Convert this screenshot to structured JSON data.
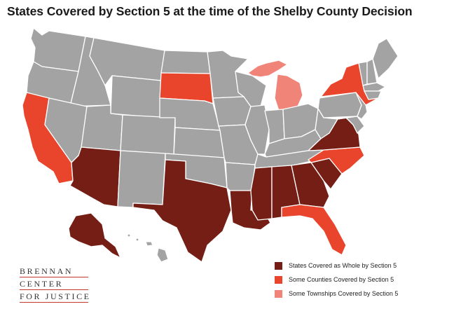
{
  "title": "States Covered by Section 5 at the time of the Shelby County Decision",
  "colors": {
    "whole": "#741e15",
    "counties": "#e9452d",
    "townships": "#f08478",
    "not_covered": "#a3a3a3",
    "border": "#ffffff"
  },
  "legend": [
    {
      "label": "States Covered as Whole by Section 5",
      "color": "#741e15"
    },
    {
      "label": "Some Counties Covered by Section 5",
      "color": "#e9452d"
    },
    {
      "label": "Some Townships Covered by Section 5",
      "color": "#f08478"
    }
  ],
  "coverage": {
    "whole": [
      "Arizona",
      "Texas",
      "Louisiana",
      "Mississippi",
      "Alabama",
      "Georgia",
      "South Carolina",
      "Virginia",
      "Alaska"
    ],
    "counties": [
      "California",
      "South Dakota",
      "New York",
      "North Carolina",
      "Florida"
    ],
    "townships": [
      "Michigan"
    ]
  },
  "logo": {
    "line1": "BRENNAN",
    "line2": "CENTER",
    "line3": "FOR JUSTICE"
  }
}
